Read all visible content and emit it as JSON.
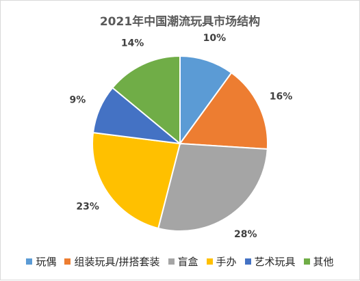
{
  "chart_data": {
    "type": "pie",
    "title": "2021年中国潮流玩具市场结构",
    "categories": [
      "玩偶",
      "组装玩具/拼搭套装",
      "盲盒",
      "手办",
      "艺术玩具",
      "其他"
    ],
    "values": [
      10,
      16,
      28,
      23,
      9,
      14
    ],
    "labels": [
      "10%",
      "16%",
      "28%",
      "23%",
      "9%",
      "14%"
    ],
    "colors": [
      "#5b9bd5",
      "#ed7d31",
      "#a5a5a5",
      "#ffc000",
      "#4472c4",
      "#70ad47"
    ],
    "legend_position": "bottom",
    "start_angle": "12 o'clock, clockwise"
  }
}
